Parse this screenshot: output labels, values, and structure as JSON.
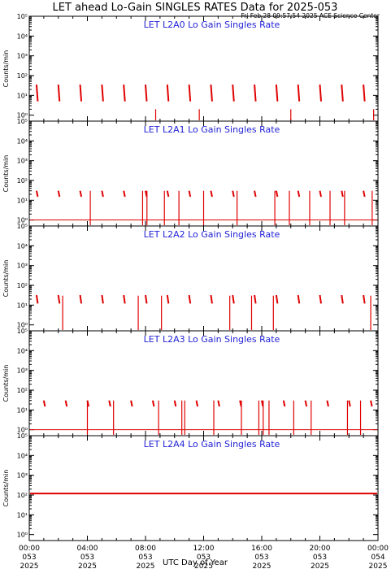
{
  "title": "LET ahead Lo-Gain SINGLES RATES Data for 2025-053",
  "timestamp": "Fri Feb 28 09:57:54 2025 ACE Science Center",
  "xlabel": "UTC Day of Year",
  "ylabel": "Counts/min",
  "colors": {
    "data": "#e00000",
    "panel_title": "#1f1fd6",
    "axes": "#000000"
  },
  "x_ticks": [
    {
      "time": "00:00",
      "doy": "053",
      "year": "2025"
    },
    {
      "time": "04:00",
      "doy": "053",
      "year": "2025"
    },
    {
      "time": "08:00",
      "doy": "053",
      "year": "2025"
    },
    {
      "time": "12:00",
      "doy": "053",
      "year": "2025"
    },
    {
      "time": "16:00",
      "doy": "053",
      "year": "2025"
    },
    {
      "time": "20:00",
      "doy": "053",
      "year": "2025"
    },
    {
      "time": "00:00",
      "doy": "054",
      "year": "2025"
    }
  ],
  "y_ticks": [
    "10⁰",
    "10¹",
    "10²",
    "10³",
    "10⁴",
    "10⁵"
  ],
  "chart_data": [
    {
      "type": "line",
      "title": "LET L2A0 Lo Gain Singles Rate",
      "ylim": [
        0.5,
        100000
      ],
      "yscale": "log",
      "xlim_hours": [
        0,
        24
      ],
      "pattern": "periodic bursts",
      "burst_hours": [
        0.5,
        2.0,
        3.5,
        5.0,
        6.5,
        8.0,
        9.5,
        11.0,
        12.5,
        14.0,
        15.5,
        17.0,
        18.5,
        20.0,
        21.5,
        23.0
      ],
      "burst_peak": 35,
      "burst_end": 5,
      "spike_hours": [
        8.7,
        11.7,
        18.0,
        23.7
      ],
      "spike_peak": 2,
      "baseline": null
    },
    {
      "type": "line",
      "title": "LET L2A1 Lo Gain Singles Rate",
      "ylim": [
        0.5,
        100000
      ],
      "yscale": "log",
      "xlim_hours": [
        0,
        24
      ],
      "pattern": "periodic bursts",
      "burst_hours": [
        0.5,
        2.0,
        3.5,
        5.0,
        6.5,
        8.0,
        9.5,
        11.0,
        12.5,
        14.0,
        15.5,
        17.0,
        18.5,
        20.0,
        21.5,
        23.0
      ],
      "burst_peak": 30,
      "burst_end": 15,
      "spike_hours": [
        4.2,
        7.8,
        8.1,
        9.3,
        10.3,
        12.0,
        14.3,
        16.9,
        17.9,
        19.3,
        20.7,
        21.7,
        23.6
      ],
      "spike_peak": 30,
      "baseline": 1
    },
    {
      "type": "line",
      "title": "LET L2A2 Lo Gain Singles Rate",
      "ylim": [
        0.5,
        100000
      ],
      "yscale": "log",
      "xlim_hours": [
        0,
        24
      ],
      "pattern": "periodic bursts",
      "burst_hours": [
        0.5,
        2.0,
        3.5,
        5.0,
        6.5,
        8.0,
        9.5,
        11.0,
        12.5,
        14.0,
        15.5,
        17.0,
        18.5,
        20.0,
        21.5,
        23.0
      ],
      "burst_peak": 32,
      "burst_end": 12,
      "spike_hours": [
        2.3,
        7.5,
        9.1,
        13.8,
        15.3,
        16.8,
        23.5
      ],
      "spike_peak": 30,
      "baseline": null
    },
    {
      "type": "line",
      "title": "LET L2A3 Lo Gain Singles Rate",
      "ylim": [
        0.5,
        100000
      ],
      "yscale": "log",
      "xlim_hours": [
        0,
        24
      ],
      "pattern": "periodic bursts",
      "burst_hours": [
        1.0,
        2.5,
        4.0,
        5.5,
        7.0,
        8.5,
        10.0,
        11.5,
        13.0,
        14.5,
        16.0,
        17.5,
        19.0,
        20.5,
        22.0,
        23.5
      ],
      "burst_peak": 30,
      "burst_end": 15,
      "spike_hours": [
        4.0,
        5.8,
        8.9,
        10.5,
        10.7,
        12.7,
        14.6,
        15.8,
        16.1,
        16.5,
        18.2,
        19.4,
        21.9,
        22.8
      ],
      "spike_peak": 30,
      "baseline": 1
    },
    {
      "type": "line",
      "title": "LET L2A4 Lo Gain Singles Rate",
      "ylim": [
        0.5,
        100000
      ],
      "yscale": "log",
      "xlim_hours": [
        0,
        24
      ],
      "pattern": "flat",
      "burst_hours": [],
      "spike_hours": [],
      "baseline": 120
    }
  ]
}
